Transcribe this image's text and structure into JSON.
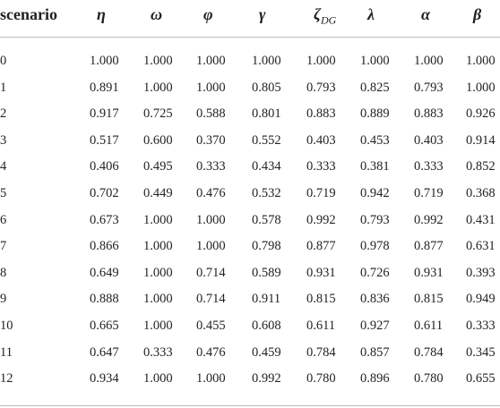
{
  "table": {
    "header": [
      "scenario",
      "η",
      "ω",
      "φ",
      "γ",
      {
        "symbol": "ζ",
        "subscript": "DG"
      },
      "λ",
      "α",
      "β"
    ],
    "rows": [
      [
        "0",
        "1.000",
        "1.000",
        "1.000",
        "1.000",
        "1.000",
        "1.000",
        "1.000",
        "1.000"
      ],
      [
        "1",
        "0.891",
        "1.000",
        "1.000",
        "0.805",
        "0.793",
        "0.825",
        "0.793",
        "1.000"
      ],
      [
        "2",
        "0.917",
        "0.725",
        "0.588",
        "0.801",
        "0.883",
        "0.889",
        "0.883",
        "0.926"
      ],
      [
        "3",
        "0.517",
        "0.600",
        "0.370",
        "0.552",
        "0.403",
        "0.453",
        "0.403",
        "0.914"
      ],
      [
        "4",
        "0.406",
        "0.495",
        "0.333",
        "0.434",
        "0.333",
        "0.381",
        "0.333",
        "0.852"
      ],
      [
        "5",
        "0.702",
        "0.449",
        "0.476",
        "0.532",
        "0.719",
        "0.942",
        "0.719",
        "0.368"
      ],
      [
        "6",
        "0.673",
        "1.000",
        "1.000",
        "0.578",
        "0.992",
        "0.793",
        "0.992",
        "0.431"
      ],
      [
        "7",
        "0.866",
        "1.000",
        "1.000",
        "0.798",
        "0.877",
        "0.978",
        "0.877",
        "0.631"
      ],
      [
        "8",
        "0.649",
        "1.000",
        "0.714",
        "0.589",
        "0.931",
        "0.726",
        "0.931",
        "0.393"
      ],
      [
        "9",
        "0.888",
        "1.000",
        "0.714",
        "0.911",
        "0.815",
        "0.836",
        "0.815",
        "0.949"
      ],
      [
        "10",
        "0.665",
        "1.000",
        "0.455",
        "0.608",
        "0.611",
        "0.927",
        "0.611",
        "0.333"
      ],
      [
        "11",
        "0.647",
        "0.333",
        "0.476",
        "0.459",
        "0.784",
        "0.857",
        "0.784",
        "0.345"
      ],
      [
        "12",
        "0.934",
        "1.000",
        "1.000",
        "0.992",
        "0.780",
        "0.896",
        "0.780",
        "0.655"
      ]
    ]
  }
}
